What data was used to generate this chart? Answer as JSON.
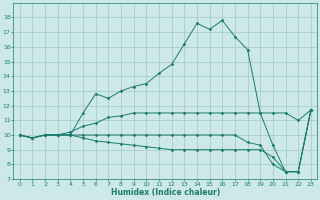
{
  "xlabel": "Humidex (Indice chaleur)",
  "background_color": "#cce8e8",
  "grid_color": "#aacccc",
  "line_color": "#1a7a6e",
  "xlim": [
    -0.5,
    23.5
  ],
  "ylim": [
    7,
    19
  ],
  "yticks": [
    7,
    8,
    9,
    10,
    11,
    12,
    13,
    14,
    15,
    16,
    17,
    18
  ],
  "xticks": [
    0,
    1,
    2,
    3,
    4,
    5,
    6,
    7,
    8,
    9,
    10,
    11,
    12,
    13,
    14,
    15,
    16,
    17,
    18,
    19,
    20,
    21,
    22,
    23
  ],
  "series": [
    [
      10,
      9.8,
      10,
      10,
      10,
      11.5,
      12.8,
      12.5,
      13,
      13.3,
      13.5,
      14.2,
      14.8,
      16.2,
      17.6,
      17.2,
      17.8,
      16.7,
      15.8,
      11.5,
      9.3,
      7.5,
      7.5,
      11.7
    ],
    [
      10,
      9.8,
      10,
      10,
      10.2,
      10.6,
      10.8,
      11.2,
      11.3,
      11.5,
      11.5,
      11.5,
      11.5,
      11.5,
      11.5,
      11.5,
      11.5,
      11.5,
      11.5,
      11.5,
      11.5,
      11.5,
      11.0,
      11.7
    ],
    [
      10,
      9.8,
      10,
      10,
      10,
      10.0,
      10.0,
      10.0,
      10.0,
      10.0,
      10.0,
      10.0,
      10.0,
      10.0,
      10.0,
      10.0,
      10.0,
      10.0,
      9.5,
      9.3,
      8.0,
      7.5,
      7.5,
      11.7
    ],
    [
      10,
      9.8,
      10,
      10,
      10,
      9.8,
      9.6,
      9.5,
      9.4,
      9.3,
      9.2,
      9.1,
      9.0,
      9.0,
      9.0,
      9.0,
      9.0,
      9.0,
      9.0,
      9.0,
      8.5,
      7.5,
      7.5,
      11.7
    ]
  ]
}
